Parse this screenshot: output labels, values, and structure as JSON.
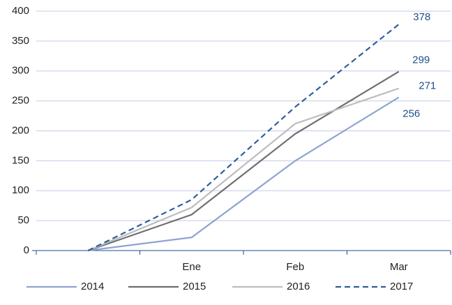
{
  "chart_data": {
    "type": "line",
    "categories": [
      null,
      "Ene",
      "Feb",
      "Mar"
    ],
    "series": [
      {
        "name": "2014",
        "color": "#8fa3d1",
        "dashed": false,
        "values": [
          0,
          22,
          150,
          256
        ]
      },
      {
        "name": "2015",
        "color": "#6f6f6f",
        "dashed": false,
        "values": [
          0,
          60,
          195,
          299
        ]
      },
      {
        "name": "2016",
        "color": "#bdbdbd",
        "dashed": false,
        "values": [
          0,
          72,
          212,
          271
        ]
      },
      {
        "name": "2017",
        "color": "#2f5e9c",
        "dashed": true,
        "values": [
          0,
          85,
          240,
          378
        ]
      }
    ],
    "ylim": [
      0,
      400
    ],
    "yticks": [
      0,
      50,
      100,
      150,
      200,
      250,
      300,
      350,
      400
    ],
    "grid": true,
    "legend": "bottom"
  }
}
